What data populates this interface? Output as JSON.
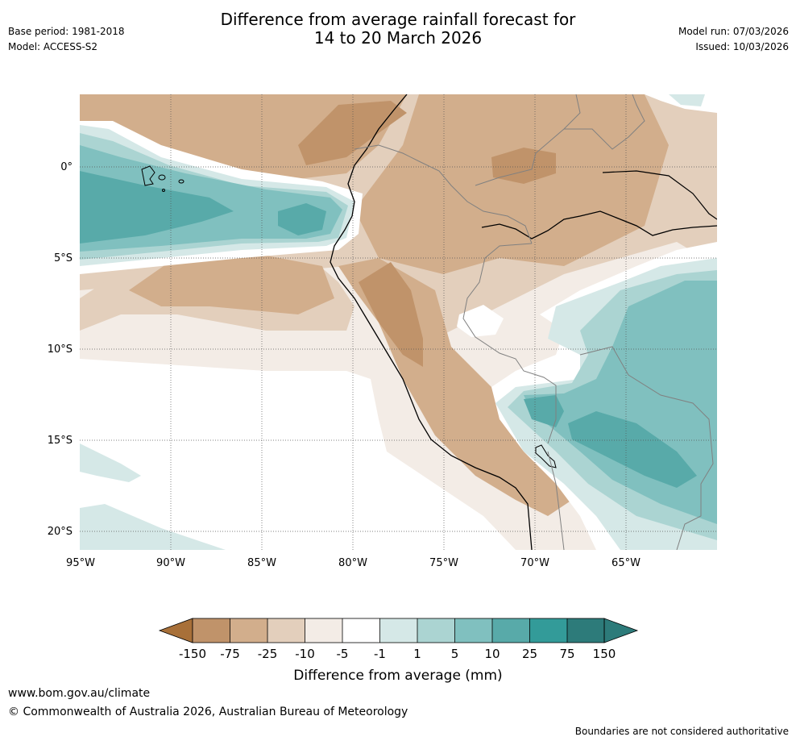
{
  "header": {
    "base_period": "Base period: 1981-2018",
    "model": "Model: ACCESS-S2",
    "title_line1": "Difference from average rainfall forecast for",
    "title_line2": "14 to 20 March 2026",
    "model_run": "Model run: 07/03/2026",
    "issued": "Issued: 10/03/2026"
  },
  "map": {
    "lat_labels": [
      "0°",
      "5°S",
      "10°S",
      "15°S",
      "20°S"
    ],
    "lon_labels": [
      "95°W",
      "90°W",
      "85°W",
      "80°W",
      "75°W",
      "70°W",
      "65°W"
    ]
  },
  "legend": {
    "tick_labels": [
      "-150",
      "-75",
      "-25",
      "-10",
      "-5",
      "-1",
      "1",
      "5",
      "10",
      "25",
      "75",
      "150"
    ],
    "colors": [
      "#a87039",
      "#c0936a",
      "#d2ae8c",
      "#e3cfbc",
      "#f3ece6",
      "#ffffff",
      "#d5e8e7",
      "#abd4d2",
      "#80c0bf",
      "#58aaa9",
      "#339b99",
      "#2d7b7a"
    ],
    "title": "Difference from average (mm)"
  },
  "footer": {
    "website": "www.bom.gov.au/climate",
    "copyright": "© Commonwealth of Australia 2026, Australian Bureau of Meteorology",
    "disclaimer": "Boundaries are not considered authoritative"
  }
}
